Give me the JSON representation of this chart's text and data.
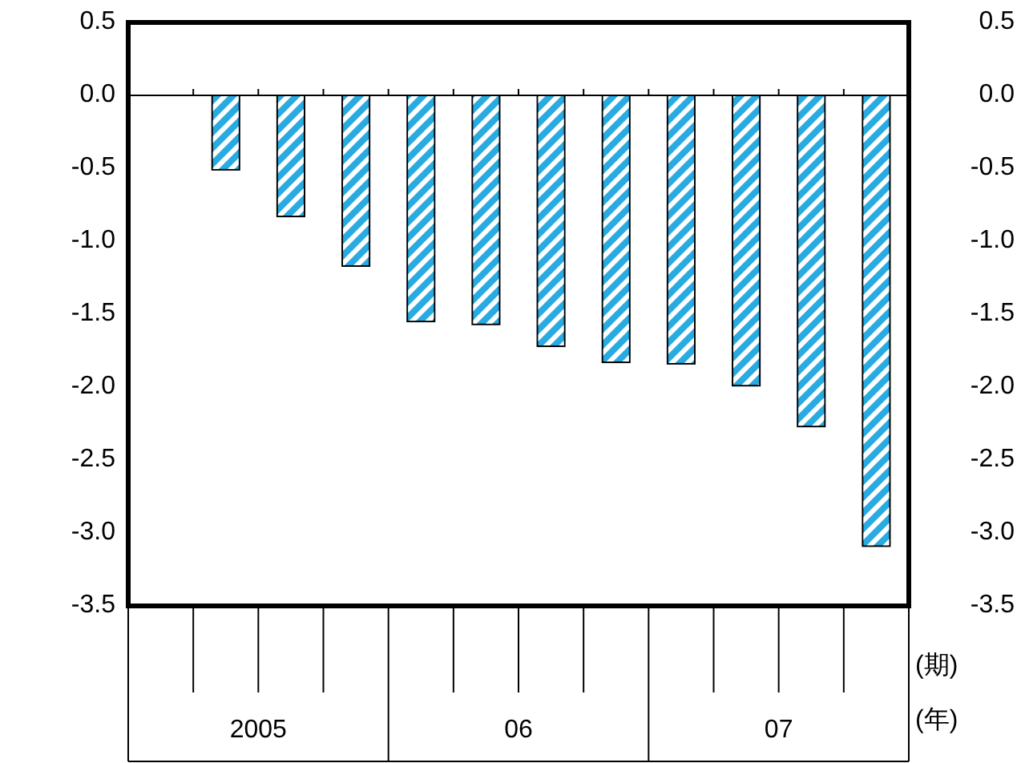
{
  "chart_data": {
    "type": "bar",
    "categories": [
      null,
      null,
      null,
      null,
      null,
      null,
      null,
      null,
      null,
      null,
      null,
      null
    ],
    "series": [
      {
        "color": "#29abe2",
        "values": [
          null,
          -0.51,
          -0.83,
          -1.17,
          -1.55,
          -1.57,
          -1.72,
          -1.83,
          -1.84,
          -1.99,
          -2.27,
          -3.09
        ]
      }
    ],
    "ylim": [
      -3.5,
      0.5
    ],
    "yticks": [
      {
        "value": 0.5,
        "label": "0.5"
      },
      {
        "value": 0,
        "label": "0.0"
      },
      {
        "value": -0.5,
        "label": "-0.5"
      },
      {
        "value": -1,
        "label": "-1.0"
      },
      {
        "value": -1.5,
        "label": "-1.5"
      },
      {
        "value": -2,
        "label": "-2.0"
      },
      {
        "value": -2.5,
        "label": "-2.5"
      },
      {
        "value": -3,
        "label": "-3.0"
      },
      {
        "value": -3.5,
        "label": "-3.5"
      }
    ],
    "y2lim": [
      -3.5,
      0.5
    ],
    "y2ticks": [
      {
        "value": 0.5,
        "label": "0.5"
      },
      {
        "value": 0,
        "label": "0.0"
      },
      {
        "value": -0.5,
        "label": "-0.5"
      },
      {
        "value": -1,
        "label": "-1.0"
      },
      {
        "value": -1.5,
        "label": "-1.5"
      },
      {
        "value": -2,
        "label": "-2.0"
      },
      {
        "value": -2.5,
        "label": "-2.5"
      },
      {
        "value": -3,
        "label": "-3.0"
      },
      {
        "value": -3.5,
        "label": "-3.5"
      }
    ],
    "xlabel": "(期)",
    "annotations": [
      "2005",
      "06",
      "07",
      "(年)"
    ],
    "ref_lines": [
      {
        "axis": "y",
        "value": 0,
        "color": "#000000",
        "line_style": "solid"
      }
    ],
    "grid": false
  }
}
